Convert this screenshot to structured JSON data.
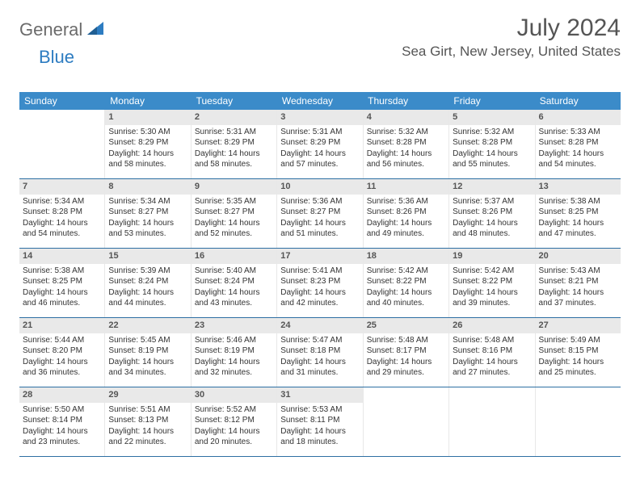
{
  "logo": {
    "part1": "General",
    "part2": "Blue"
  },
  "title": "July 2024",
  "location": "Sea Girt, New Jersey, United States",
  "colors": {
    "header_bg": "#3b8bc9",
    "header_text": "#ffffff",
    "daynum_bg": "#e9e9e9",
    "week_border": "#2d6fa3",
    "logo_gray": "#6b6b6b",
    "logo_blue": "#2d7cc1"
  },
  "dow": [
    "Sunday",
    "Monday",
    "Tuesday",
    "Wednesday",
    "Thursday",
    "Friday",
    "Saturday"
  ],
  "weeks": [
    [
      {
        "n": "",
        "lines": []
      },
      {
        "n": "1",
        "lines": [
          "Sunrise: 5:30 AM",
          "Sunset: 8:29 PM",
          "Daylight: 14 hours and 58 minutes."
        ]
      },
      {
        "n": "2",
        "lines": [
          "Sunrise: 5:31 AM",
          "Sunset: 8:29 PM",
          "Daylight: 14 hours and 58 minutes."
        ]
      },
      {
        "n": "3",
        "lines": [
          "Sunrise: 5:31 AM",
          "Sunset: 8:29 PM",
          "Daylight: 14 hours and 57 minutes."
        ]
      },
      {
        "n": "4",
        "lines": [
          "Sunrise: 5:32 AM",
          "Sunset: 8:28 PM",
          "Daylight: 14 hours and 56 minutes."
        ]
      },
      {
        "n": "5",
        "lines": [
          "Sunrise: 5:32 AM",
          "Sunset: 8:28 PM",
          "Daylight: 14 hours and 55 minutes."
        ]
      },
      {
        "n": "6",
        "lines": [
          "Sunrise: 5:33 AM",
          "Sunset: 8:28 PM",
          "Daylight: 14 hours and 54 minutes."
        ]
      }
    ],
    [
      {
        "n": "7",
        "lines": [
          "Sunrise: 5:34 AM",
          "Sunset: 8:28 PM",
          "Daylight: 14 hours and 54 minutes."
        ]
      },
      {
        "n": "8",
        "lines": [
          "Sunrise: 5:34 AM",
          "Sunset: 8:27 PM",
          "Daylight: 14 hours and 53 minutes."
        ]
      },
      {
        "n": "9",
        "lines": [
          "Sunrise: 5:35 AM",
          "Sunset: 8:27 PM",
          "Daylight: 14 hours and 52 minutes."
        ]
      },
      {
        "n": "10",
        "lines": [
          "Sunrise: 5:36 AM",
          "Sunset: 8:27 PM",
          "Daylight: 14 hours and 51 minutes."
        ]
      },
      {
        "n": "11",
        "lines": [
          "Sunrise: 5:36 AM",
          "Sunset: 8:26 PM",
          "Daylight: 14 hours and 49 minutes."
        ]
      },
      {
        "n": "12",
        "lines": [
          "Sunrise: 5:37 AM",
          "Sunset: 8:26 PM",
          "Daylight: 14 hours and 48 minutes."
        ]
      },
      {
        "n": "13",
        "lines": [
          "Sunrise: 5:38 AM",
          "Sunset: 8:25 PM",
          "Daylight: 14 hours and 47 minutes."
        ]
      }
    ],
    [
      {
        "n": "14",
        "lines": [
          "Sunrise: 5:38 AM",
          "Sunset: 8:25 PM",
          "Daylight: 14 hours and 46 minutes."
        ]
      },
      {
        "n": "15",
        "lines": [
          "Sunrise: 5:39 AM",
          "Sunset: 8:24 PM",
          "Daylight: 14 hours and 44 minutes."
        ]
      },
      {
        "n": "16",
        "lines": [
          "Sunrise: 5:40 AM",
          "Sunset: 8:24 PM",
          "Daylight: 14 hours and 43 minutes."
        ]
      },
      {
        "n": "17",
        "lines": [
          "Sunrise: 5:41 AM",
          "Sunset: 8:23 PM",
          "Daylight: 14 hours and 42 minutes."
        ]
      },
      {
        "n": "18",
        "lines": [
          "Sunrise: 5:42 AM",
          "Sunset: 8:22 PM",
          "Daylight: 14 hours and 40 minutes."
        ]
      },
      {
        "n": "19",
        "lines": [
          "Sunrise: 5:42 AM",
          "Sunset: 8:22 PM",
          "Daylight: 14 hours and 39 minutes."
        ]
      },
      {
        "n": "20",
        "lines": [
          "Sunrise: 5:43 AM",
          "Sunset: 8:21 PM",
          "Daylight: 14 hours and 37 minutes."
        ]
      }
    ],
    [
      {
        "n": "21",
        "lines": [
          "Sunrise: 5:44 AM",
          "Sunset: 8:20 PM",
          "Daylight: 14 hours and 36 minutes."
        ]
      },
      {
        "n": "22",
        "lines": [
          "Sunrise: 5:45 AM",
          "Sunset: 8:19 PM",
          "Daylight: 14 hours and 34 minutes."
        ]
      },
      {
        "n": "23",
        "lines": [
          "Sunrise: 5:46 AM",
          "Sunset: 8:19 PM",
          "Daylight: 14 hours and 32 minutes."
        ]
      },
      {
        "n": "24",
        "lines": [
          "Sunrise: 5:47 AM",
          "Sunset: 8:18 PM",
          "Daylight: 14 hours and 31 minutes."
        ]
      },
      {
        "n": "25",
        "lines": [
          "Sunrise: 5:48 AM",
          "Sunset: 8:17 PM",
          "Daylight: 14 hours and 29 minutes."
        ]
      },
      {
        "n": "26",
        "lines": [
          "Sunrise: 5:48 AM",
          "Sunset: 8:16 PM",
          "Daylight: 14 hours and 27 minutes."
        ]
      },
      {
        "n": "27",
        "lines": [
          "Sunrise: 5:49 AM",
          "Sunset: 8:15 PM",
          "Daylight: 14 hours and 25 minutes."
        ]
      }
    ],
    [
      {
        "n": "28",
        "lines": [
          "Sunrise: 5:50 AM",
          "Sunset: 8:14 PM",
          "Daylight: 14 hours and 23 minutes."
        ]
      },
      {
        "n": "29",
        "lines": [
          "Sunrise: 5:51 AM",
          "Sunset: 8:13 PM",
          "Daylight: 14 hours and 22 minutes."
        ]
      },
      {
        "n": "30",
        "lines": [
          "Sunrise: 5:52 AM",
          "Sunset: 8:12 PM",
          "Daylight: 14 hours and 20 minutes."
        ]
      },
      {
        "n": "31",
        "lines": [
          "Sunrise: 5:53 AM",
          "Sunset: 8:11 PM",
          "Daylight: 14 hours and 18 minutes."
        ]
      },
      {
        "n": "",
        "lines": []
      },
      {
        "n": "",
        "lines": []
      },
      {
        "n": "",
        "lines": []
      }
    ]
  ]
}
